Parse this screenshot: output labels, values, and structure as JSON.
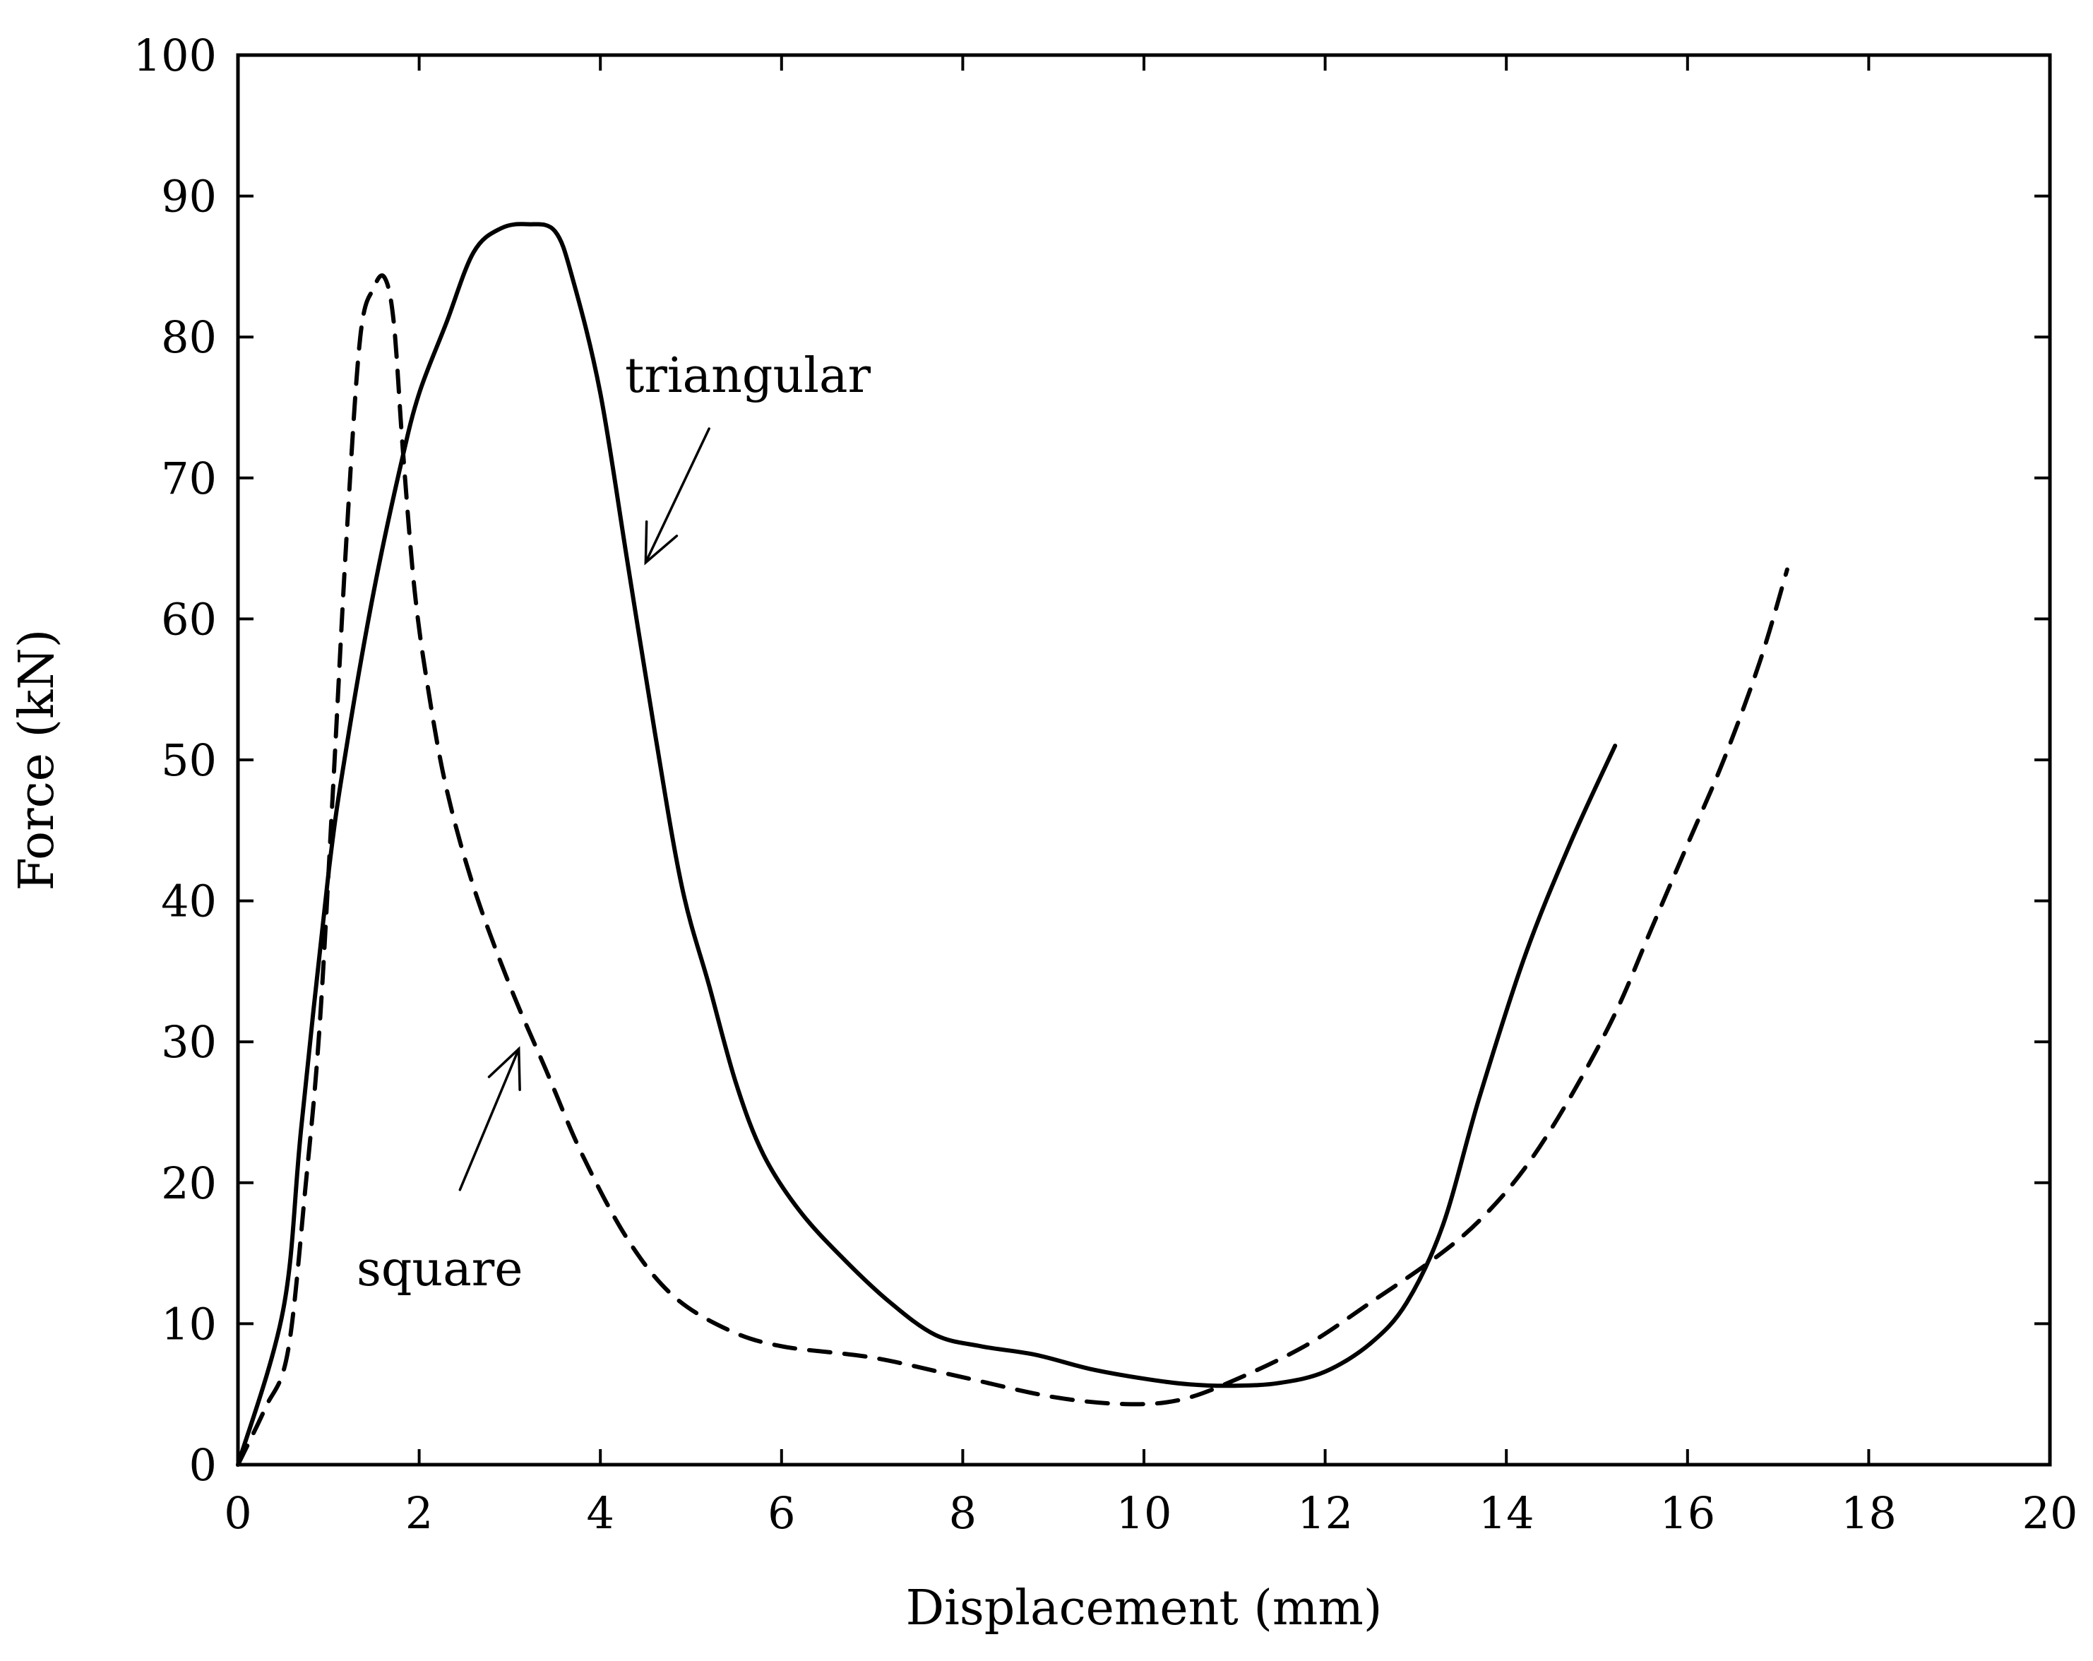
{
  "chart_data": {
    "type": "line",
    "xlabel": "Displacement (mm)",
    "ylabel": "Force (kN)",
    "xlim": [
      0,
      20
    ],
    "ylim": [
      0,
      100
    ],
    "xticks": [
      0,
      2,
      4,
      6,
      8,
      10,
      12,
      14,
      16,
      18,
      20
    ],
    "yticks": [
      0,
      10,
      20,
      30,
      40,
      50,
      60,
      70,
      80,
      90,
      100
    ],
    "grid": false,
    "series": [
      {
        "name": "triangular",
        "style": "solid",
        "color": "#000000",
        "points": [
          [
            0,
            0
          ],
          [
            0.5,
            11
          ],
          [
            0.7,
            24
          ],
          [
            1.0,
            42
          ],
          [
            1.2,
            51
          ],
          [
            1.5,
            62
          ],
          [
            1.8,
            71
          ],
          [
            2.0,
            76
          ],
          [
            2.3,
            81
          ],
          [
            2.6,
            86
          ],
          [
            2.9,
            87.7
          ],
          [
            3.2,
            88
          ],
          [
            3.5,
            87.5
          ],
          [
            3.7,
            84
          ],
          [
            4.0,
            76
          ],
          [
            4.3,
            64
          ],
          [
            4.6,
            52
          ],
          [
            4.9,
            41
          ],
          [
            5.2,
            34
          ],
          [
            5.5,
            27
          ],
          [
            5.8,
            22
          ],
          [
            6.2,
            18
          ],
          [
            6.7,
            14.5
          ],
          [
            7.2,
            11.5
          ],
          [
            7.7,
            9.2
          ],
          [
            8.2,
            8.4
          ],
          [
            8.8,
            7.8
          ],
          [
            9.4,
            6.8
          ],
          [
            10.0,
            6.1
          ],
          [
            10.5,
            5.7
          ],
          [
            11.0,
            5.6
          ],
          [
            11.5,
            5.8
          ],
          [
            12.0,
            6.6
          ],
          [
            12.5,
            8.6
          ],
          [
            12.9,
            11.5
          ],
          [
            13.3,
            17
          ],
          [
            13.7,
            26
          ],
          [
            14.2,
            36
          ],
          [
            14.7,
            44
          ],
          [
            15.2,
            51
          ]
        ]
      },
      {
        "name": "square",
        "style": "dashed",
        "color": "#000000",
        "points": [
          [
            0,
            0
          ],
          [
            0.3,
            4
          ],
          [
            0.55,
            8
          ],
          [
            0.75,
            20
          ],
          [
            0.9,
            31
          ],
          [
            1.05,
            48
          ],
          [
            1.2,
            66
          ],
          [
            1.35,
            80
          ],
          [
            1.5,
            83.5
          ],
          [
            1.62,
            84.2
          ],
          [
            1.72,
            81
          ],
          [
            1.82,
            72
          ],
          [
            1.95,
            62
          ],
          [
            2.1,
            55
          ],
          [
            2.3,
            48
          ],
          [
            2.6,
            41
          ],
          [
            3.0,
            34
          ],
          [
            3.4,
            28
          ],
          [
            3.8,
            22
          ],
          [
            4.3,
            16
          ],
          [
            4.8,
            12
          ],
          [
            5.4,
            9.6
          ],
          [
            6.0,
            8.4
          ],
          [
            7.0,
            7.6
          ],
          [
            8.0,
            6.2
          ],
          [
            9.0,
            4.8
          ],
          [
            9.8,
            4.3
          ],
          [
            10.4,
            4.6
          ],
          [
            11.0,
            6.0
          ],
          [
            11.8,
            8.5
          ],
          [
            12.5,
            11.5
          ],
          [
            13.2,
            14.6
          ],
          [
            13.7,
            17.3
          ],
          [
            14.2,
            21
          ],
          [
            14.7,
            26
          ],
          [
            15.2,
            32
          ],
          [
            15.6,
            38
          ],
          [
            16.0,
            44
          ],
          [
            16.4,
            50
          ],
          [
            16.8,
            57
          ],
          [
            17.1,
            63.5
          ]
        ]
      }
    ],
    "annotations": [
      {
        "text": "triangular",
        "arrow_from": [
          5.2,
          73.5
        ],
        "arrow_to": [
          4.5,
          64
        ]
      },
      {
        "text": "square",
        "arrow_from": [
          2.45,
          19.5
        ],
        "arrow_to": [
          3.1,
          29.5
        ]
      }
    ]
  }
}
